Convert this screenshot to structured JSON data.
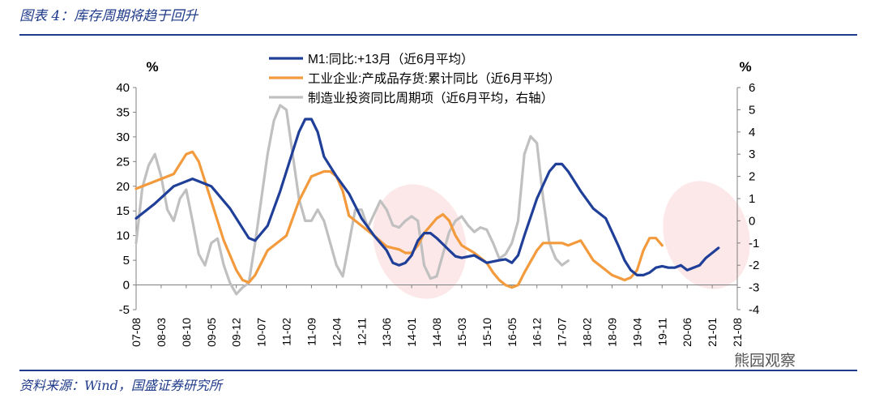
{
  "header": {
    "title": "图表 4：库存周期将趋于回升"
  },
  "footer": {
    "source": "资料来源：Wind，国盛证券研究所"
  },
  "watermark": {
    "text": "熊园观察"
  },
  "colors": {
    "m1": "#1f3f99",
    "inventory": "#f39a3c",
    "investment": "#c0c0c0",
    "highlight": "#f9d5d5"
  },
  "chart_data": {
    "type": "line",
    "title": "",
    "ylabel_left": "%",
    "ylabel_right": "%",
    "ylim_left": [
      -5,
      40
    ],
    "ylim_right": [
      -4,
      6
    ],
    "yticks_left": [
      -5,
      0,
      5,
      10,
      15,
      20,
      25,
      30,
      35,
      40
    ],
    "yticks_right": [
      -4,
      -3,
      -2,
      -1,
      0,
      1,
      2,
      3,
      4,
      5,
      6
    ],
    "x_tick_labels": [
      "07-08",
      "08-03",
      "08-10",
      "09-05",
      "09-12",
      "10-07",
      "11-02",
      "11-09",
      "12-04",
      "12-11",
      "13-06",
      "14-01",
      "14-08",
      "15-03",
      "15-10",
      "16-05",
      "16-12",
      "17-07",
      "18-02",
      "18-09",
      "19-04",
      "19-11",
      "20-06",
      "21-01",
      "21-08"
    ],
    "legend_position": "top-center",
    "series": [
      {
        "name": "M1:同比:+13月（近6月平均）",
        "axis": "left",
        "color_key": "m1",
        "points": [
          [
            0,
            13.5
          ],
          [
            3,
            16.5
          ],
          [
            6,
            20
          ],
          [
            9,
            21.5
          ],
          [
            12,
            20
          ],
          [
            15,
            15.5
          ],
          [
            18,
            9.5
          ],
          [
            19,
            9
          ],
          [
            21,
            12
          ],
          [
            23,
            19
          ],
          [
            25,
            27
          ],
          [
            26,
            31
          ],
          [
            27,
            33.6
          ],
          [
            28,
            33.6
          ],
          [
            29,
            31
          ],
          [
            30,
            26
          ],
          [
            32,
            22
          ],
          [
            34,
            18.5
          ],
          [
            36,
            13.5
          ],
          [
            38,
            10
          ],
          [
            40,
            7
          ],
          [
            41,
            4.5
          ],
          [
            42,
            4
          ],
          [
            43,
            4.5
          ],
          [
            44,
            6
          ],
          [
            45,
            9
          ],
          [
            46,
            10.5
          ],
          [
            47,
            10.5
          ],
          [
            48,
            9.5
          ],
          [
            50,
            7
          ],
          [
            51,
            5.8
          ],
          [
            52,
            5.5
          ],
          [
            54,
            6
          ],
          [
            56,
            4.5
          ],
          [
            58,
            5
          ],
          [
            59,
            5.2
          ],
          [
            60,
            4.5
          ],
          [
            61,
            6
          ],
          [
            62,
            10
          ],
          [
            64,
            17.5
          ],
          [
            66,
            23
          ],
          [
            67,
            24.5
          ],
          [
            68,
            24.5
          ],
          [
            69,
            23
          ],
          [
            71,
            19
          ],
          [
            73,
            15.5
          ],
          [
            75,
            13.5
          ],
          [
            77,
            8
          ],
          [
            78,
            5
          ],
          [
            79,
            3
          ],
          [
            80,
            2
          ],
          [
            81,
            2
          ],
          [
            82,
            2.5
          ],
          [
            83,
            3.5
          ],
          [
            84,
            3.8
          ],
          [
            85,
            3.5
          ],
          [
            86,
            3.5
          ],
          [
            87,
            4
          ],
          [
            88,
            3
          ],
          [
            90,
            4
          ],
          [
            91,
            5.5
          ],
          [
            92,
            6.5
          ],
          [
            93,
            7.5
          ]
        ]
      },
      {
        "name": "工业企业:产成品存货:累计同比（近6月平均）",
        "axis": "left",
        "color_key": "inventory",
        "points": [
          [
            0,
            19.5
          ],
          [
            3,
            21
          ],
          [
            6,
            22.5
          ],
          [
            8,
            26.5
          ],
          [
            9,
            27
          ],
          [
            10,
            25
          ],
          [
            12,
            17
          ],
          [
            14,
            9
          ],
          [
            16,
            3
          ],
          [
            17,
            1
          ],
          [
            18,
            0.5
          ],
          [
            19,
            2
          ],
          [
            21,
            7
          ],
          [
            23,
            9
          ],
          [
            24,
            10
          ],
          [
            26,
            17
          ],
          [
            28,
            22
          ],
          [
            30,
            23
          ],
          [
            31,
            23
          ],
          [
            32,
            22
          ],
          [
            33,
            19
          ],
          [
            34,
            14
          ],
          [
            36,
            12
          ],
          [
            38,
            10
          ],
          [
            40,
            7.8
          ],
          [
            41,
            7.5
          ],
          [
            42,
            7.2
          ],
          [
            43,
            6.5
          ],
          [
            44,
            6.5
          ],
          [
            45,
            8
          ],
          [
            46,
            10.5
          ],
          [
            47,
            12
          ],
          [
            48,
            13.5
          ],
          [
            49,
            14.3
          ],
          [
            50,
            13
          ],
          [
            51,
            10
          ],
          [
            52,
            8
          ],
          [
            54,
            6.5
          ],
          [
            56,
            4.5
          ],
          [
            57,
            2.5
          ],
          [
            58,
            1
          ],
          [
            59,
            0
          ],
          [
            60,
            -0.5
          ],
          [
            61,
            0
          ],
          [
            62,
            2.5
          ],
          [
            64,
            7
          ],
          [
            65,
            8.5
          ],
          [
            66,
            8.5
          ],
          [
            68,
            8.5
          ],
          [
            69,
            8
          ],
          [
            70,
            8.5
          ],
          [
            71,
            9
          ],
          [
            72,
            7
          ],
          [
            73,
            5
          ],
          [
            75,
            3
          ],
          [
            76,
            2
          ],
          [
            77,
            1.5
          ],
          [
            78,
            1
          ],
          [
            79,
            1.5
          ],
          [
            80,
            3
          ],
          [
            81,
            7
          ],
          [
            82,
            9.5
          ],
          [
            83,
            9.5
          ],
          [
            84,
            8
          ]
        ]
      },
      {
        "name": "制造业投资同比周期项（近6月平均，右轴）",
        "axis": "right",
        "color_key": "investment",
        "points": [
          [
            0,
            -1
          ],
          [
            1,
            1.5
          ],
          [
            2,
            2.5
          ],
          [
            3,
            3
          ],
          [
            4,
            2
          ],
          [
            5,
            0.5
          ],
          [
            6,
            0
          ],
          [
            7,
            1
          ],
          [
            8,
            1.4
          ],
          [
            9,
            0
          ],
          [
            10,
            -1.5
          ],
          [
            11,
            -2
          ],
          [
            12,
            -1
          ],
          [
            13,
            -0.8
          ],
          [
            14,
            -2
          ],
          [
            15,
            -2.8
          ],
          [
            16,
            -3.3
          ],
          [
            17,
            -3
          ],
          [
            18,
            -2.8
          ],
          [
            19,
            -1
          ],
          [
            20,
            1
          ],
          [
            21,
            3
          ],
          [
            22,
            4.5
          ],
          [
            23,
            5.2
          ],
          [
            24,
            5
          ],
          [
            25,
            3
          ],
          [
            26,
            1
          ],
          [
            27,
            0
          ],
          [
            28,
            0
          ],
          [
            29,
            0.5
          ],
          [
            30,
            0
          ],
          [
            31,
            -1
          ],
          [
            32,
            -2
          ],
          [
            33,
            -2.5
          ],
          [
            34,
            -1
          ],
          [
            35,
            0.5
          ],
          [
            36,
            0.5
          ],
          [
            37,
            -0.3
          ],
          [
            38,
            0.3
          ],
          [
            39,
            0.9
          ],
          [
            40,
            0.5
          ],
          [
            41,
            -0.2
          ],
          [
            42,
            -0.3
          ],
          [
            43,
            0
          ],
          [
            44,
            0.2
          ],
          [
            45,
            0
          ],
          [
            46,
            -2
          ],
          [
            47,
            -2.6
          ],
          [
            48,
            -2.5
          ],
          [
            49,
            -1.5
          ],
          [
            50,
            -0.5
          ],
          [
            51,
            0
          ],
          [
            52,
            0.2
          ],
          [
            53,
            -0.2
          ],
          [
            54,
            -0.5
          ],
          [
            55,
            -0.3
          ],
          [
            56,
            -0.4
          ],
          [
            57,
            -1
          ],
          [
            58,
            -1.7
          ],
          [
            59,
            -1.5
          ],
          [
            60,
            -1
          ],
          [
            61,
            0
          ],
          [
            62,
            3
          ],
          [
            63,
            3.8
          ],
          [
            64,
            3.5
          ],
          [
            65,
            1
          ],
          [
            66,
            -1
          ],
          [
            67,
            -1.7
          ],
          [
            68,
            -2
          ],
          [
            69,
            -1.8
          ]
        ]
      }
    ]
  }
}
